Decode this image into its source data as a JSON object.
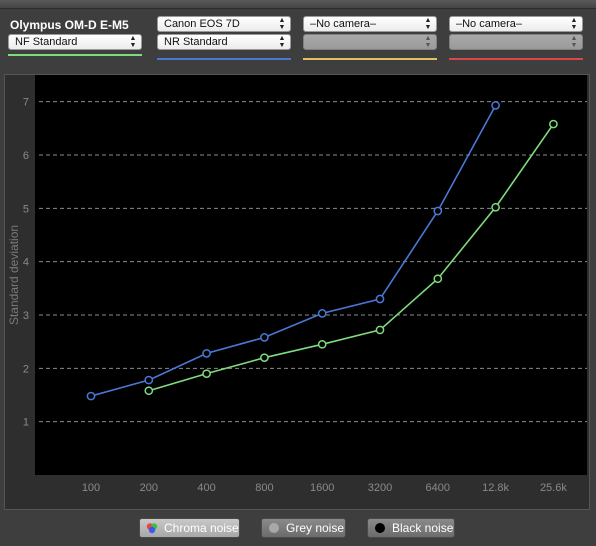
{
  "cameras": [
    {
      "title": "Olympus OM-D E-M5",
      "model": "",
      "nr": "NF Standard",
      "color": "#7ddc7d",
      "nr_disabled": false
    },
    {
      "title": "",
      "model": "Canon EOS 7D",
      "nr": "NR Standard",
      "color": "#4a78d6",
      "nr_disabled": false
    },
    {
      "title": "",
      "model": "–No camera–",
      "nr": "",
      "color": "#e0c060",
      "nr_disabled": true
    },
    {
      "title": "",
      "model": "–No camera–",
      "nr": "",
      "color": "#d84848",
      "nr_disabled": true
    }
  ],
  "chart_data": {
    "type": "line",
    "ylabel": "Standard deviation",
    "xlabel": "",
    "categories": [
      "100",
      "200",
      "400",
      "800",
      "1600",
      "3200",
      "6400",
      "12.8k",
      "25.6k"
    ],
    "ylim": [
      0,
      7.5
    ],
    "yticks": [
      1,
      2,
      3,
      4,
      5,
      6,
      7
    ],
    "grid": true,
    "series": [
      {
        "color": "#4a78d6",
        "values": [
          1.48,
          1.78,
          2.28,
          2.58,
          3.03,
          3.3,
          4.95,
          6.93,
          null
        ]
      },
      {
        "color": "#7ddc7d",
        "values": [
          null,
          1.58,
          1.9,
          2.2,
          2.45,
          2.72,
          3.68,
          5.02,
          6.58
        ]
      }
    ]
  },
  "legend": {
    "chroma": "Chroma noise",
    "grey": "Grey noise",
    "black": "Black noise"
  }
}
